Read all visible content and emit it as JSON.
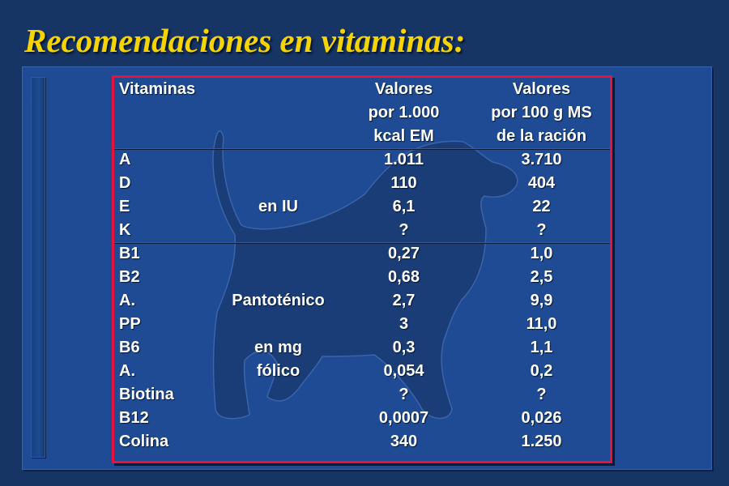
{
  "title": "Recomendaciones en vitaminas:",
  "table": {
    "header": {
      "col_name": "Vitaminas",
      "col_v1": [
        "Valores",
        "por 1.000",
        "kcal EM"
      ],
      "col_v2": [
        "Valores",
        "por 100 g MS",
        "de la ración"
      ]
    },
    "group_iu": [
      {
        "name": "A",
        "unit": "",
        "v1": "1.011",
        "v2": "3.710"
      },
      {
        "name": "D",
        "unit": "",
        "v1": "110",
        "v2": "404"
      },
      {
        "name": "E",
        "unit": "en IU",
        "v1": "6,1",
        "v2": "22"
      },
      {
        "name": "K",
        "unit": "",
        "v1": "?",
        "v2": "?"
      }
    ],
    "group_mg": [
      {
        "name": "B1",
        "unit": "",
        "v1": "0,27",
        "v2": "1,0"
      },
      {
        "name": "B2",
        "unit": "",
        "v1": "0,68",
        "v2": "2,5"
      },
      {
        "name": "A.",
        "unit": "Pantoténico",
        "v1": "2,7",
        "v2": "9,9"
      },
      {
        "name": "PP",
        "unit": "",
        "v1": "3",
        "v2": "11,0"
      },
      {
        "name": "B6",
        "unit": "en mg",
        "v1": "0,3",
        "v2": "1,1"
      },
      {
        "name": "A.",
        "unit": "fólico",
        "v1": "0,054",
        "v2": "0,2"
      },
      {
        "name": "Biotina",
        "unit": "",
        "v1": "?",
        "v2": "?"
      },
      {
        "name": "B12",
        "unit": "",
        "v1": "0,0007",
        "v2": "0,026"
      },
      {
        "name": "Colina",
        "unit": "",
        "v1": "340",
        "v2": "1.250"
      }
    ]
  },
  "colors": {
    "background": "#163464",
    "panel": "#1f4b94",
    "title": "#f5d400",
    "table_border": "#e8123a",
    "dog_silhouette": "#1a3c77"
  },
  "icons": {
    "background_image": "dog-silhouette"
  }
}
